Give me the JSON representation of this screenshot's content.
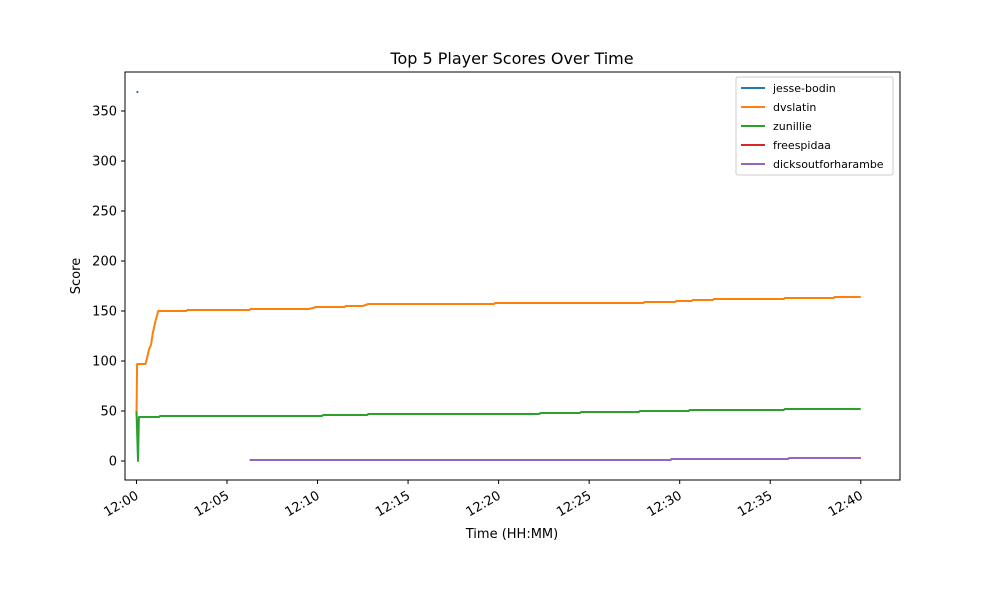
{
  "chart_data": {
    "type": "line",
    "title": "Top 5 Player Scores Over Time",
    "xlabel": "Time (HH:MM)",
    "ylabel": "Score",
    "xlim": [
      "11:59:22",
      "12:42:10"
    ],
    "ylim": [
      -19,
      389
    ],
    "x_ticks": [
      "12:00",
      "12:05",
      "12:10",
      "12:15",
      "12:20",
      "12:25",
      "12:30",
      "12:35",
      "12:40"
    ],
    "y_ticks": [
      0,
      50,
      100,
      150,
      200,
      250,
      300,
      350
    ],
    "grid": false,
    "legend_position": "top-right",
    "series": [
      {
        "name": "jesse-bodin",
        "color": "#1f77b4",
        "points": [
          [
            "12:00:00",
            369
          ],
          [
            "12:00:06",
            369
          ]
        ]
      },
      {
        "name": "dvslatin",
        "color": "#ff7f0e",
        "points": [
          [
            "12:00:00",
            45
          ],
          [
            "12:00:02",
            97
          ],
          [
            "12:00:30",
            97
          ],
          [
            "12:00:36",
            104
          ],
          [
            "12:00:42",
            112
          ],
          [
            "12:00:48",
            116
          ],
          [
            "12:00:54",
            128
          ],
          [
            "12:01:03",
            140
          ],
          [
            "12:01:12",
            150
          ],
          [
            "12:02:45",
            150
          ],
          [
            "12:02:48",
            151
          ],
          [
            "12:06:15",
            151
          ],
          [
            "12:06:18",
            152
          ],
          [
            "12:09:30",
            152
          ],
          [
            "12:09:45",
            153
          ],
          [
            "12:09:55",
            154
          ],
          [
            "12:11:30",
            154
          ],
          [
            "12:11:33",
            155
          ],
          [
            "12:12:30",
            155
          ],
          [
            "12:12:48",
            157
          ],
          [
            "12:19:45",
            157
          ],
          [
            "12:19:48",
            158
          ],
          [
            "12:28:00",
            158
          ],
          [
            "12:28:03",
            159
          ],
          [
            "12:29:45",
            159
          ],
          [
            "12:29:48",
            160
          ],
          [
            "12:30:40",
            160
          ],
          [
            "12:30:43",
            161
          ],
          [
            "12:31:50",
            161
          ],
          [
            "12:31:53",
            162
          ],
          [
            "12:35:45",
            162
          ],
          [
            "12:35:48",
            163
          ],
          [
            "12:38:30",
            163
          ],
          [
            "12:38:33",
            164
          ],
          [
            "12:40:00",
            164
          ]
        ]
      },
      {
        "name": "zunillie",
        "color": "#2ca02c",
        "points": [
          [
            "12:00:00",
            50
          ],
          [
            "12:00:05",
            0
          ],
          [
            "12:00:08",
            44
          ],
          [
            "12:01:15",
            44
          ],
          [
            "12:01:18",
            45
          ],
          [
            "12:10:15",
            45
          ],
          [
            "12:10:18",
            46
          ],
          [
            "12:12:45",
            46
          ],
          [
            "12:12:48",
            47
          ],
          [
            "12:22:15",
            47
          ],
          [
            "12:22:18",
            48
          ],
          [
            "12:24:30",
            48
          ],
          [
            "12:24:33",
            49
          ],
          [
            "12:27:45",
            49
          ],
          [
            "12:27:48",
            50
          ],
          [
            "12:30:30",
            50
          ],
          [
            "12:30:33",
            51
          ],
          [
            "12:35:45",
            51
          ],
          [
            "12:35:48",
            52
          ],
          [
            "12:40:00",
            52
          ]
        ]
      },
      {
        "name": "freespidaa",
        "color": "#d62728",
        "points": [
          [
            "12:20:00",
            1
          ],
          [
            "12:29:30",
            1
          ],
          [
            "12:29:33",
            2
          ],
          [
            "12:36:00",
            2
          ],
          [
            "12:36:03",
            3
          ],
          [
            "12:40:00",
            3
          ]
        ]
      },
      {
        "name": "dicksoutforharambe",
        "color": "#9467bd",
        "points": [
          [
            "12:06:15",
            1
          ],
          [
            "12:29:30",
            1
          ],
          [
            "12:29:33",
            2
          ],
          [
            "12:36:00",
            2
          ],
          [
            "12:36:03",
            3
          ],
          [
            "12:40:00",
            3
          ]
        ]
      }
    ]
  }
}
